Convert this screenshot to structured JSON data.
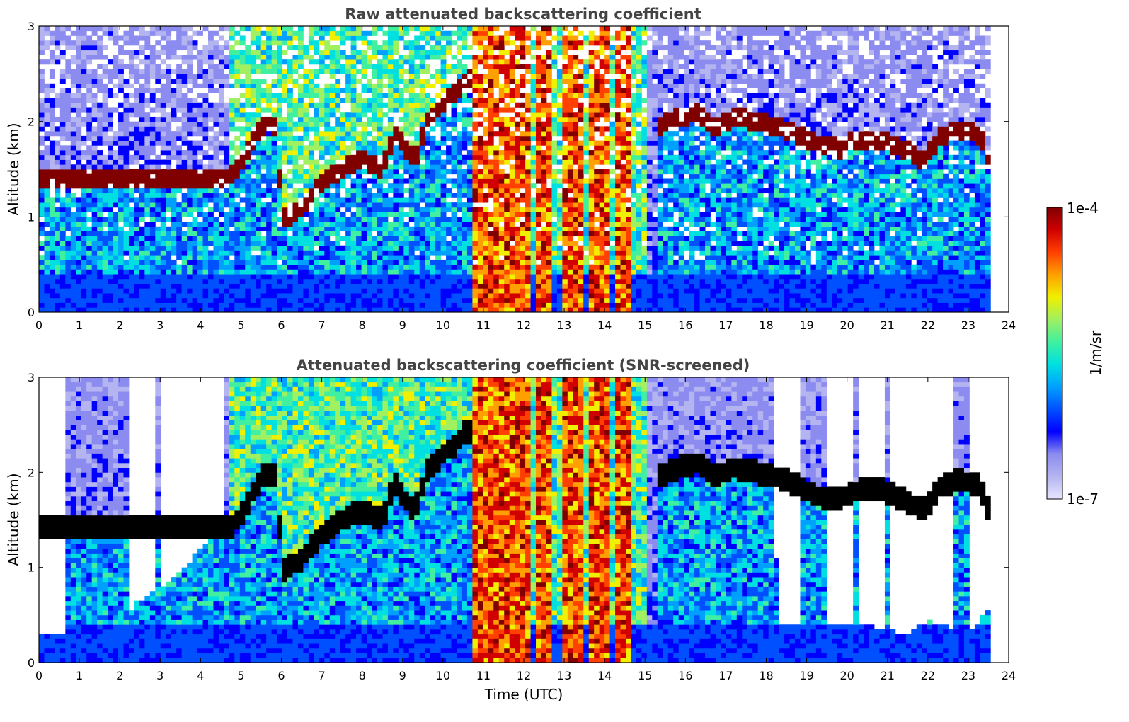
{
  "chart_data": [
    {
      "type": "heatmap",
      "title": "Raw attenuated backscattering coefficient",
      "xlabel": "",
      "ylabel": "Altitude (km)",
      "xlim": [
        0,
        24
      ],
      "ylim": [
        0,
        3
      ],
      "xticks": [
        "0",
        "1",
        "2",
        "3",
        "4",
        "5",
        "6",
        "7",
        "8",
        "9",
        "10",
        "11",
        "12",
        "13",
        "14",
        "15",
        "16",
        "17",
        "18",
        "19",
        "20",
        "21",
        "22",
        "23",
        "24"
      ],
      "yticks": [
        "0",
        "1",
        "2",
        "3"
      ],
      "screened": false,
      "data_end_hour": 23.55,
      "cloud_base_km": [
        [
          4.75,
          1.42
        ],
        [
          5.0,
          1.55
        ],
        [
          5.3,
          1.8
        ],
        [
          5.6,
          2.0
        ],
        [
          5.9,
          1.95
        ],
        [
          6.0,
          0.95
        ],
        [
          6.5,
          1.1
        ],
        [
          7.0,
          1.35
        ],
        [
          7.5,
          1.5
        ],
        [
          8.0,
          1.6
        ],
        [
          8.5,
          1.5
        ],
        [
          8.8,
          1.9
        ],
        [
          9.0,
          1.75
        ],
        [
          9.3,
          1.6
        ],
        [
          9.6,
          2.0
        ],
        [
          10.0,
          2.2
        ],
        [
          10.3,
          2.3
        ],
        [
          10.6,
          2.45
        ],
        [
          15.3,
          1.95
        ],
        [
          15.8,
          2.05
        ],
        [
          16.3,
          2.1
        ],
        [
          16.7,
          1.95
        ],
        [
          17.2,
          2.05
        ],
        [
          17.8,
          2.0
        ],
        [
          18.3,
          1.95
        ],
        [
          18.8,
          1.85
        ],
        [
          19.3,
          1.75
        ],
        [
          19.8,
          1.72
        ],
        [
          20.3,
          1.82
        ],
        [
          20.8,
          1.82
        ],
        [
          21.2,
          1.75
        ],
        [
          21.9,
          1.6
        ],
        [
          22.3,
          1.85
        ],
        [
          22.8,
          1.92
        ],
        [
          23.3,
          1.85
        ],
        [
          23.5,
          1.6
        ]
      ],
      "rain_columns_hour": [
        [
          10.7,
          11.45
        ],
        [
          11.55,
          12.2
        ],
        [
          12.3,
          12.7
        ],
        [
          13.0,
          13.5
        ],
        [
          13.6,
          14.1
        ],
        [
          14.2,
          14.6
        ]
      ]
    },
    {
      "type": "heatmap",
      "title": "Attenuated backscattering coefficient (SNR-screened)",
      "xlabel": "Time (UTC)",
      "ylabel": "Altitude (km)",
      "xlim": [
        0,
        24
      ],
      "ylim": [
        0,
        3
      ],
      "xticks": [
        "0",
        "1",
        "2",
        "3",
        "4",
        "5",
        "6",
        "7",
        "8",
        "9",
        "10",
        "11",
        "12",
        "13",
        "14",
        "15",
        "16",
        "17",
        "18",
        "19",
        "20",
        "21",
        "22",
        "23",
        "24"
      ],
      "yticks": [
        "0",
        "1",
        "2",
        "3"
      ],
      "screened": true,
      "data_end_hour": 23.55,
      "screen_top_km": [
        [
          0,
          0.3
        ],
        [
          2.2,
          0.3
        ],
        [
          2.3,
          0.6
        ],
        [
          3.0,
          0.8
        ],
        [
          3.5,
          0.95
        ],
        [
          4.0,
          1.2
        ],
        [
          4.75,
          1.45
        ],
        [
          5.0,
          1.6
        ],
        [
          6.0,
          1.7
        ],
        [
          7.0,
          1.3
        ],
        [
          8.0,
          1.1
        ],
        [
          9.0,
          1.2
        ],
        [
          10.0,
          1.0
        ],
        [
          11.0,
          1.1
        ],
        [
          14.0,
          0.9
        ],
        [
          15.0,
          1.6
        ],
        [
          16.0,
          1.9
        ],
        [
          17.0,
          2.0
        ],
        [
          18.2,
          1.9
        ],
        [
          18.3,
          0.38
        ],
        [
          19.5,
          0.38
        ],
        [
          20.3,
          0.4
        ],
        [
          21.0,
          0.35
        ],
        [
          21.5,
          0.3
        ],
        [
          22.0,
          0.45
        ],
        [
          23.0,
          0.3
        ],
        [
          23.55,
          0.6
        ]
      ]
    }
  ],
  "colorbar": {
    "label": "1/m/sr",
    "max_label": "1e-4",
    "min_label": "1e-7",
    "colors": [
      "#e6e6ff",
      "#b4b4f0",
      "#8c8cf0",
      "#0000ff",
      "#0050ff",
      "#00a0ff",
      "#00e0e0",
      "#40f0a0",
      "#a0f060",
      "#f0f000",
      "#ffa000",
      "#ff4000",
      "#d00000",
      "#800000"
    ]
  }
}
